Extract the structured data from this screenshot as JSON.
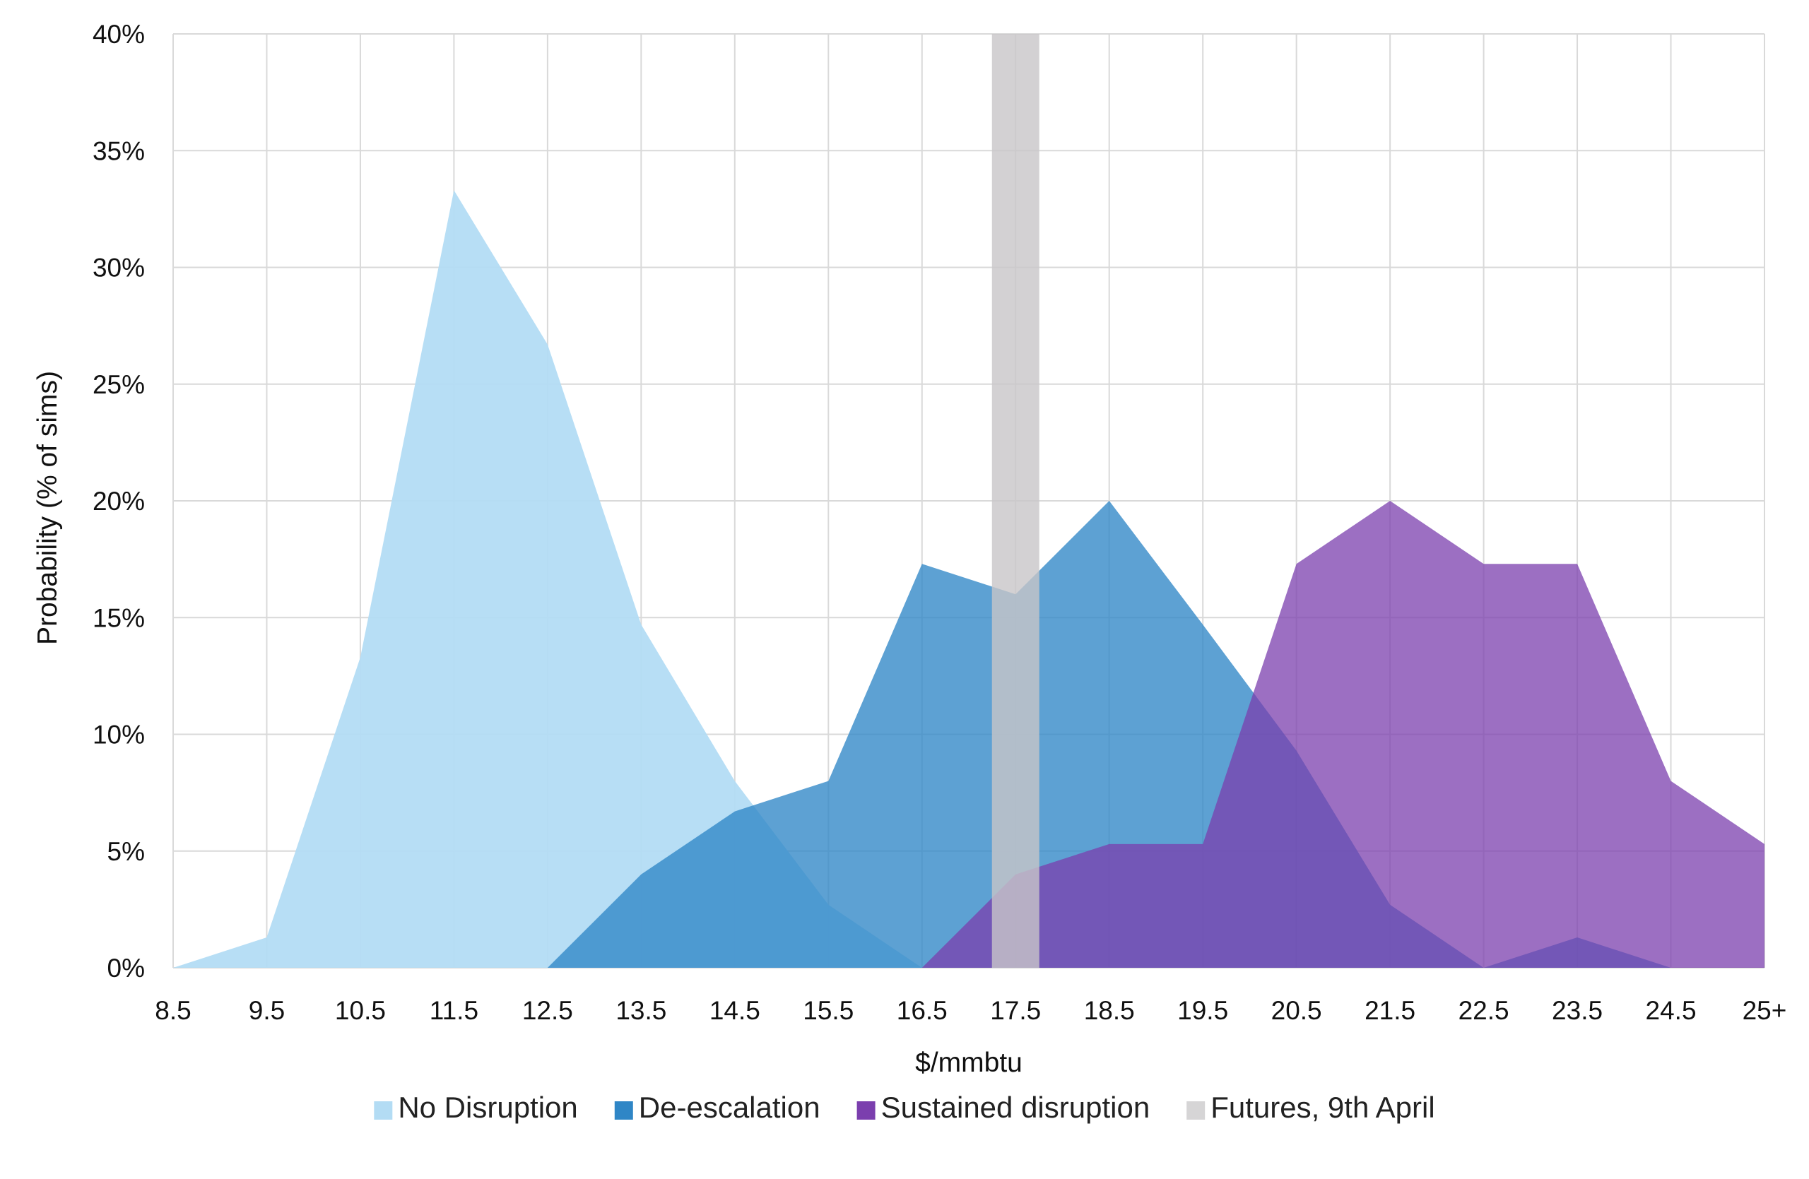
{
  "chart_data": {
    "type": "area",
    "title": "",
    "xlabel": "$/mmbtu",
    "ylabel": "Probability (% of sims)",
    "categories": [
      "8.5",
      "9.5",
      "10.5",
      "11.5",
      "12.5",
      "13.5",
      "14.5",
      "15.5",
      "16.5",
      "17.5",
      "18.5",
      "19.5",
      "20.5",
      "21.5",
      "22.5",
      "23.5",
      "24.5",
      "25+"
    ],
    "ylim": [
      0,
      40
    ],
    "yticks": [
      "0%",
      "5%",
      "10%",
      "15%",
      "20%",
      "25%",
      "30%",
      "35%",
      "40%"
    ],
    "grid": true,
    "legend_position": "bottom",
    "series": [
      {
        "name": "No Disruption",
        "color": "#b3dcf4",
        "opacity": 0.95,
        "values": [
          0,
          1.3,
          13.3,
          33.3,
          26.7,
          14.7,
          8.0,
          2.7,
          0,
          0,
          0,
          0,
          0,
          0,
          0,
          0,
          0,
          0
        ]
      },
      {
        "name": "De-escalation",
        "color": "#2f86c6",
        "opacity": 0.78,
        "values": [
          0,
          0,
          0,
          0,
          0,
          4.0,
          6.7,
          8.0,
          17.3,
          16.0,
          20.0,
          14.7,
          9.3,
          2.7,
          0,
          1.3,
          0,
          0
        ]
      },
      {
        "name": "Sustained disruption",
        "color": "#7b3fae",
        "opacity": 0.75,
        "values": [
          0,
          0,
          0,
          0,
          0,
          0,
          0,
          0,
          0,
          4.0,
          5.3,
          5.3,
          17.3,
          20.0,
          17.3,
          17.3,
          8.0,
          5.3
        ]
      }
    ],
    "futures_band": {
      "name": "Futures, 9th April",
      "color": "#c8c6c8",
      "opacity": 0.8,
      "from": 17.3,
      "to": 17.7
    }
  }
}
